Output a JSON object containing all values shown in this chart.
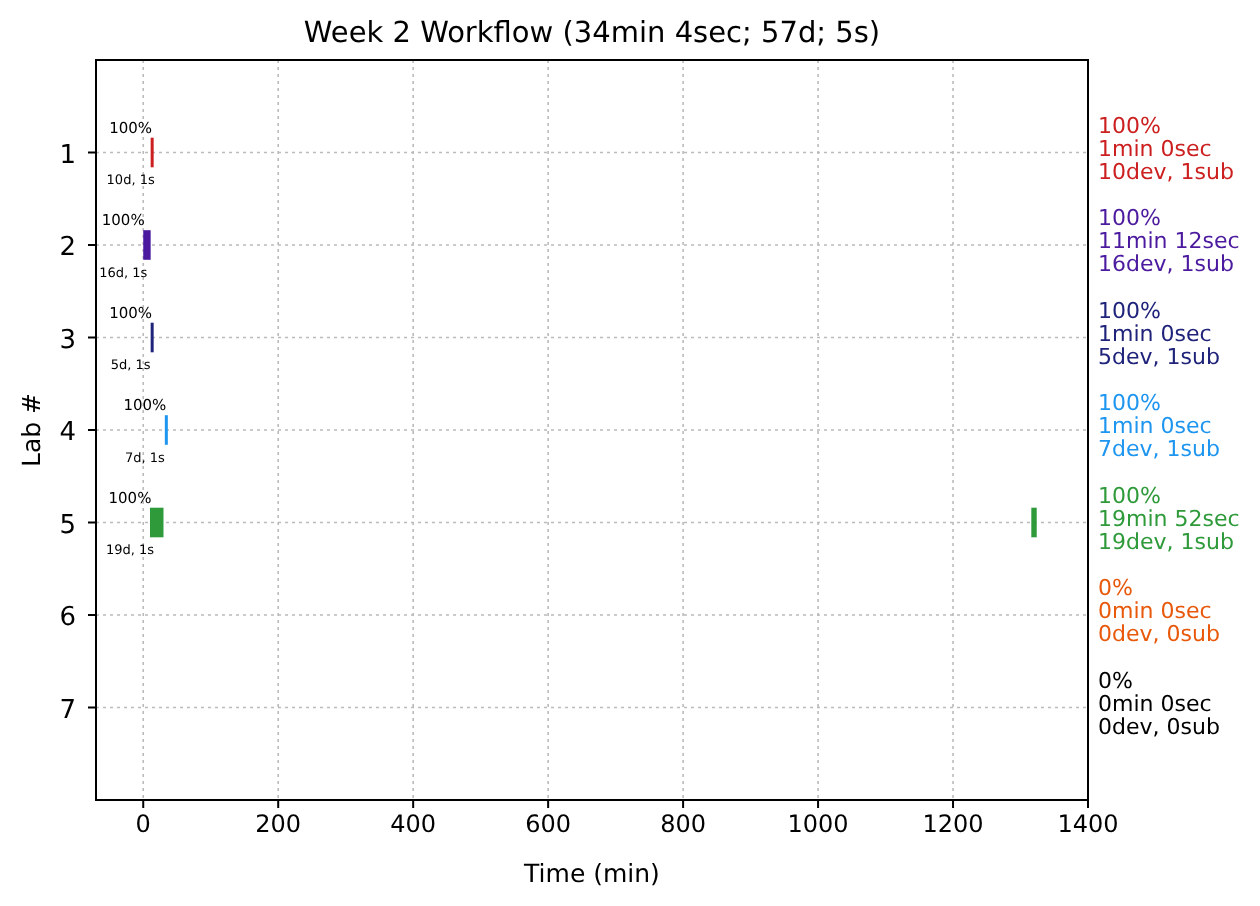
{
  "chart_data": {
    "type": "bar",
    "orientation": "horizontal",
    "title": "Week 2 Workflow (34min 4sec; 57d; 5s)",
    "xlabel": "Time (min)",
    "ylabel": "Lab #",
    "categories": [
      "1",
      "2",
      "3",
      "4",
      "5",
      "6",
      "7"
    ],
    "series": [
      {
        "values": [
          1,
          11,
          1,
          1,
          20,
          null,
          null
        ],
        "base": [
          11,
          0,
          11,
          32,
          10,
          null,
          null
        ],
        "colors": [
          "#cc1f1f",
          "#4b1a9e",
          "#1f237a",
          "#1e96f0",
          "#2e9a3a",
          "#e8590c",
          "#000000"
        ]
      },
      {
        "values": [
          null,
          null,
          null,
          null,
          8,
          null,
          null
        ],
        "base": [
          null,
          null,
          null,
          null,
          1316,
          null,
          null
        ],
        "color": "#2e9a3a"
      }
    ],
    "xlim": [
      -70,
      1400
    ],
    "xticks": [
      0,
      200,
      400,
      600,
      800,
      1000,
      1200,
      1400
    ],
    "grid": true,
    "annotations": [
      "100%",
      "10d, 1s",
      "100%",
      "16d, 1s",
      "100%",
      "5d, 1s",
      "100%",
      "7d, 1s",
      "100%",
      "19d, 1s",
      "100%",
      "1min 0sec",
      "10dev, 1sub",
      "100%",
      "11min 12sec",
      "16dev, 1sub",
      "100%",
      "1min 0sec",
      "5dev, 1sub",
      "100%",
      "1min 0sec",
      "7dev, 1sub",
      "100%",
      "19min 52sec",
      "19dev, 1sub",
      "0%",
      "0min 0sec",
      "0dev, 0sub",
      "0%",
      "0min 0sec",
      "0dev, 0sub"
    ]
  }
}
